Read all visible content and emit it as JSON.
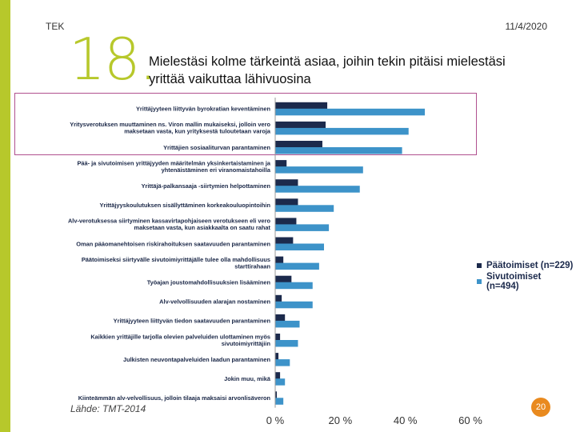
{
  "header": {
    "brand": "TEK",
    "date": "11/4/2020"
  },
  "slide": {
    "number": "18.",
    "title": "Mielestäsi kolme tärkeintä asiaa, joihin tekin pitäisi mielestäsi yrittää vaikuttaa lähivuosina"
  },
  "footer": {
    "source": "Lähde: TMT-2014",
    "page": "20"
  },
  "colors": {
    "accent": "#b7c82b",
    "series1": "#1c2a4c",
    "series2": "#3d93c9",
    "highlight": "#b0518f",
    "badge": "#e98a1f"
  },
  "chart_data": {
    "type": "bar",
    "orientation": "horizontal",
    "title": "",
    "xlabel": "",
    "ylabel": "",
    "xlim": [
      0,
      60
    ],
    "ticks": [
      "0 %",
      "20 %",
      "40 %",
      "60 %"
    ],
    "grid": false,
    "legend_position": "right",
    "categories": [
      "Yrittäjyyteen liittyvän byrokratian keventäminen",
      "Yritysverotuksen muuttaminen ns. Viron mallin mukaiseksi, jolloin vero maksetaan vasta, kun yrityksestä tuloutetaan varoja",
      "Yrittäjien sosiaaliturvan parantaminen",
      "Pää- ja sivutoimisen yrittäjyyden määritelmän yksinkertaistaminen ja yhtenäistäminen eri viranomaistahoilla",
      "Yrittäjä-palkansaaja -siirtymien helpottaminen",
      "Yrittäjyyskoulutuksen sisällyttäminen korkeakouluopintoihin",
      "Alv-verotuksessa siirtyminen kassavirtapohjaiseen verotukseen eli vero maksetaan vasta, kun asiakkaalta on saatu rahat",
      "Oman pääomanehtoisen riskirahoituksen saatavuuden parantaminen",
      "Päätoimiseksi siirtyvälle sivutoimiyrittäjälle tulee olla mahdollisuus starttirahaan",
      "Työajan joustomahdollisuuksien lisääminen",
      "Alv-velvollisuuden alarajan nostaminen",
      "Yrittäjyyteen liittyvän tiedon saatavuuden parantaminen",
      "Kaikkien yrittäjille tarjolla olevien palveluiden ulottaminen myös sivutoimiyrittäjiin",
      "Julkisten neuvontapalveluiden laadun parantaminen",
      "Jokin muu, mikä",
      "Kiinteämmän alv-velvollisuus, jolloin tilaaja maksaisi arvonlisäveron"
    ],
    "series": [
      {
        "name": "Päätoimiset (n=229)",
        "values": [
          16,
          15.5,
          14.5,
          3.5,
          7,
          7,
          6.5,
          5.5,
          2.5,
          5,
          2,
          3,
          1.5,
          1,
          1.5,
          0.5
        ]
      },
      {
        "name": "Sivutoimiset (n=494)",
        "values": [
          46,
          41,
          39,
          27,
          26,
          18,
          16.5,
          15,
          13.5,
          11.5,
          11.5,
          7.5,
          7,
          4.5,
          3,
          2.5
        ]
      }
    ]
  }
}
